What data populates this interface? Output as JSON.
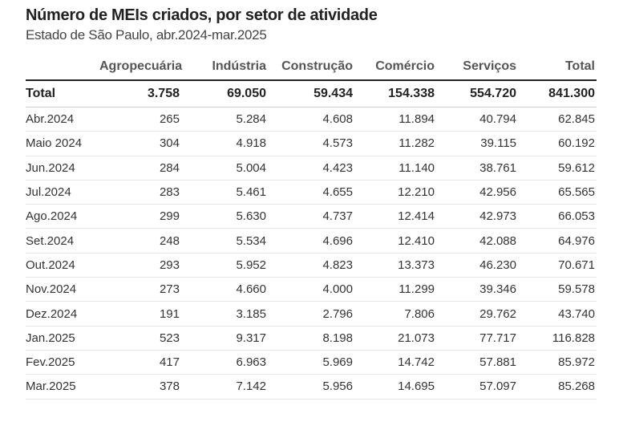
{
  "title": "Número de MEIs criados, por setor de atividade",
  "subtitle": "Estado de São Paulo, abr.2024-mar.2025",
  "table": {
    "columns": [
      "",
      "Agropecuária",
      "Indústria",
      "Construção",
      "Comércio",
      "Serviços",
      "Total"
    ],
    "total_row": [
      "Total",
      "3.758",
      "69.050",
      "59.434",
      "154.338",
      "554.720",
      "841.300"
    ],
    "rows": [
      [
        "Abr.2024",
        "265",
        "5.284",
        "4.608",
        "11.894",
        "40.794",
        "62.845"
      ],
      [
        "Maio 2024",
        "304",
        "4.918",
        "4.573",
        "11.282",
        "39.115",
        "60.192"
      ],
      [
        "Jun.2024",
        "284",
        "5.004",
        "4.423",
        "11.140",
        "38.761",
        "59.612"
      ],
      [
        "Jul.2024",
        "283",
        "5.461",
        "4.655",
        "12.210",
        "42.956",
        "65.565"
      ],
      [
        "Ago.2024",
        "299",
        "5.630",
        "4.737",
        "12.414",
        "42.973",
        "66.053"
      ],
      [
        "Set.2024",
        "248",
        "5.534",
        "4.696",
        "12.410",
        "42.088",
        "64.976"
      ],
      [
        "Out.2024",
        "293",
        "5.952",
        "4.823",
        "13.373",
        "46.230",
        "70.671"
      ],
      [
        "Nov.2024",
        "273",
        "4.660",
        "4.000",
        "11.299",
        "39.346",
        "59.578"
      ],
      [
        "Dez.2024",
        "191",
        "3.185",
        "2.796",
        "7.806",
        "29.762",
        "43.740"
      ],
      [
        "Jan.2025",
        "523",
        "9.317",
        "8.198",
        "21.073",
        "77.717",
        "116.828"
      ],
      [
        "Fev.2025",
        "417",
        "6.963",
        "5.969",
        "14.742",
        "57.881",
        "85.972"
      ],
      [
        "Mar.2025",
        "378",
        "7.142",
        "5.956",
        "14.695",
        "57.097",
        "85.268"
      ]
    ]
  }
}
